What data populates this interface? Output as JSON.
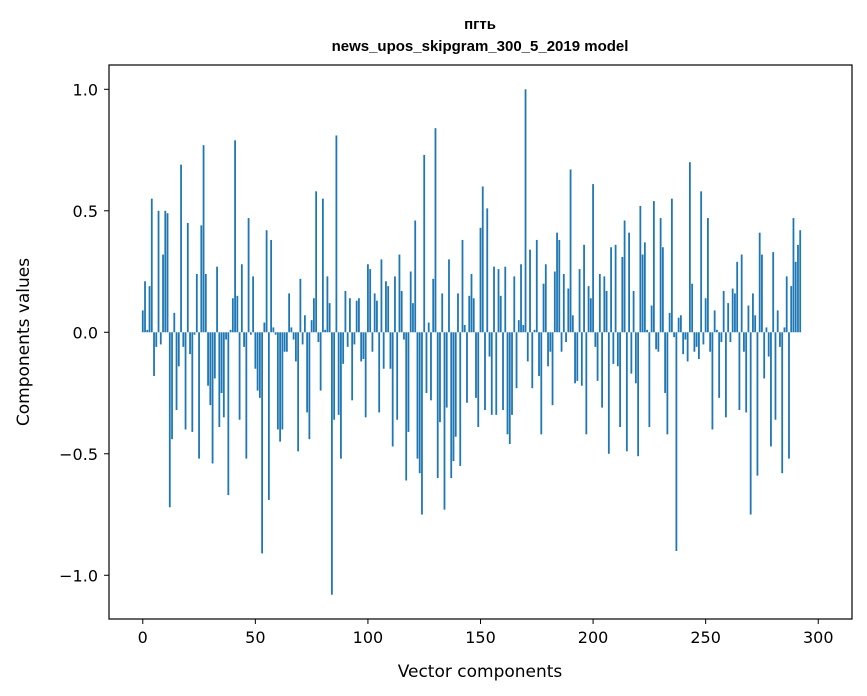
{
  "chart_data": {
    "type": "bar",
    "title_line1": "пгть",
    "title_line2": "news_upos_skipgram_300_5_2019 model",
    "xlabel": "Vector components",
    "ylabel": "Components values",
    "xlim": [
      -15,
      315
    ],
    "ylim": [
      -1.18,
      1.1
    ],
    "x_ticks": [
      0,
      50,
      100,
      150,
      200,
      250,
      300
    ],
    "x_tick_labels": [
      "0",
      "50",
      "100",
      "150",
      "200",
      "250",
      "300"
    ],
    "y_ticks": [
      1.0,
      0.5,
      0.0,
      -0.5,
      -1.0
    ],
    "y_tick_labels": [
      "1.0",
      "0.5",
      "0.0",
      "−0.5",
      "−1.0"
    ],
    "bar_color": "#1f77b4",
    "values": [
      0.09,
      0.21,
      0.01,
      0.19,
      0.55,
      -0.18,
      -0.06,
      0.5,
      -0.05,
      0.32,
      0.5,
      0.49,
      -0.72,
      -0.44,
      0.08,
      -0.32,
      -0.14,
      0.69,
      -0.06,
      -0.4,
      0.45,
      -0.09,
      -0.41,
      -0.01,
      0.24,
      -0.52,
      0.44,
      0.77,
      0.24,
      -0.22,
      -0.3,
      -0.54,
      -0.19,
      0.27,
      -0.39,
      -0.25,
      -0.35,
      -0.03,
      -0.67,
      0.01,
      0.14,
      0.79,
      0.15,
      -0.36,
      0.28,
      -0.06,
      -0.52,
      0.47,
      -0.01,
      0.23,
      -0.15,
      -0.24,
      -0.27,
      -0.91,
      0.04,
      0.42,
      -0.69,
      0.38,
      0.02,
      -0.01,
      -0.4,
      -0.45,
      -0.4,
      -0.08,
      -0.08,
      0.16,
      0.02,
      -0.03,
      -0.12,
      -0.49,
      0.22,
      -0.05,
      0.07,
      -0.33,
      -0.44,
      0.05,
      0.14,
      0.58,
      -0.04,
      -0.24,
      0.55,
      0.01,
      0.23,
      0.12,
      -1.08,
      -0.36,
      0.81,
      -0.34,
      -0.52,
      -0.13,
      0.17,
      -0.06,
      0.14,
      -0.28,
      -0.05,
      0.13,
      0.14,
      -0.12,
      -0.11,
      -0.35,
      0.28,
      0.26,
      -0.08,
      0.16,
      0.13,
      -0.33,
      0.3,
      -0.15,
      0.21,
      0.19,
      -0.15,
      -0.47,
      0.23,
      -0.36,
      0.32,
      0.17,
      -0.03,
      -0.61,
      -0.41,
      0.25,
      0.12,
      0.46,
      -0.52,
      -0.58,
      -0.75,
      0.73,
      -0.25,
      0.04,
      -0.28,
      0.22,
      0.84,
      -0.6,
      -0.37,
      0.16,
      -0.73,
      -0.31,
      0.3,
      -0.6,
      -0.53,
      -0.43,
      0.16,
      -0.55,
      0.38,
      0.03,
      -0.29,
      0.15,
      0.24,
      0.14,
      -0.27,
      -0.39,
      0.43,
      0.6,
      -0.32,
      0.51,
      -0.1,
      -0.34,
      0.27,
      -0.34,
      0.26,
      0.15,
      -0.32,
      0.27,
      -0.42,
      -0.46,
      -0.34,
      0.23,
      -0.23,
      0.05,
      0.28,
      0.03,
      1.0,
      -0.12,
      0.34,
      -0.23,
      0.01,
      0.38,
      -0.18,
      -0.42,
      0.2,
      0.28,
      -0.14,
      -0.08,
      -0.3,
      0.25,
      0.41,
      0.38,
      -0.08,
      0.24,
      -0.04,
      0.18,
      0.67,
      0.07,
      -0.21,
      -0.2,
      0.26,
      -0.22,
      0.36,
      -0.42,
      0.19,
      0.14,
      0.61,
      -0.06,
      -0.2,
      0.24,
      -0.31,
      0.23,
      0.17,
      -0.5,
      0.35,
      -0.13,
      0.36,
      -0.14,
      -0.39,
      0.31,
      0.46,
      -0.49,
      0.41,
      -0.17,
      0.17,
      -0.21,
      -0.51,
      0.52,
      0.32,
      0.37,
      0.01,
      -0.39,
      0.11,
      0.54,
      -0.07,
      -0.08,
      0.47,
      0.35,
      -0.25,
      -0.42,
      0.08,
      0.55,
      -0.02,
      -0.9,
      0.06,
      0.07,
      -0.09,
      -0.03,
      -0.12,
      0.7,
      0.2,
      -0.08,
      -0.06,
      -0.11,
      0.58,
      -0.05,
      0.14,
      0.47,
      -0.08,
      -0.4,
      0.09,
      0.01,
      -0.27,
      -0.04,
      0.17,
      -0.35,
      0.12,
      -0.04,
      0.18,
      0.16,
      0.29,
      -0.32,
      0.32,
      -0.08,
      -0.33,
      0.11,
      -0.75,
      0.16,
      0.07,
      -0.59,
      0.41,
      0.32,
      -0.19,
      0.02,
      -0.1,
      -0.47,
      0.33,
      -0.36,
      0.09,
      -0.06,
      -0.58,
      0.02,
      0.23,
      -0.52,
      0.19,
      0.47,
      0.29,
      0.36,
      0.42
    ]
  }
}
